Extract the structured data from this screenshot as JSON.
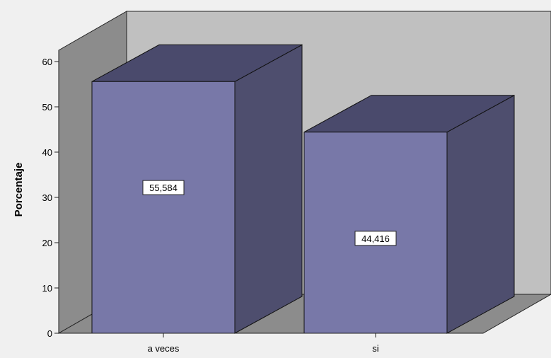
{
  "chart_data": {
    "type": "bar",
    "categories": [
      "a veces",
      "si"
    ],
    "values": [
      55.584,
      44.416
    ],
    "value_labels": [
      "55,584",
      "44,416"
    ],
    "ylabel": "Porcentaje",
    "xlabel": "",
    "ylim": [
      0,
      60
    ],
    "yticks": [
      0,
      10,
      20,
      30,
      40,
      50,
      60
    ],
    "style": "3d",
    "grid": false,
    "colors": {
      "bar_front": "#7878a8",
      "bar_top": "#4a4a6c",
      "bar_side": "#4e4e6e",
      "back_wall": "#c0c0c0",
      "left_wall": "#8c8c8c",
      "floor": "#8c8c8c",
      "background": "#f0f0f0"
    }
  }
}
